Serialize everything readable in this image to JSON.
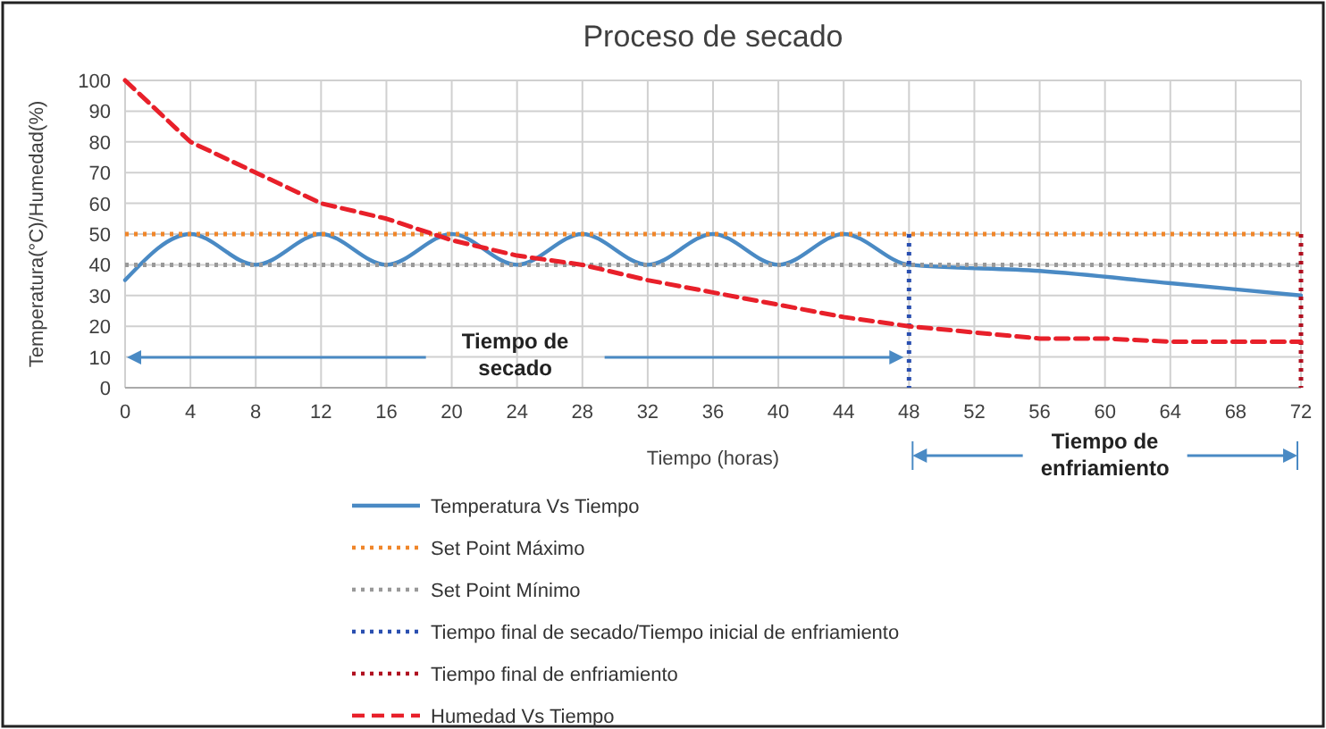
{
  "chart_data": {
    "type": "line",
    "title": "Proceso de secado",
    "xlabel": "Tiempo (horas)",
    "ylabel": "Temperatura(°C)/Humedad(%)",
    "xlim": [
      0,
      72
    ],
    "xticks": [
      0,
      4,
      8,
      12,
      16,
      20,
      24,
      28,
      32,
      36,
      40,
      44,
      48,
      52,
      56,
      60,
      64,
      68,
      72
    ],
    "ylim": [
      0,
      100
    ],
    "yticks": [
      0,
      10,
      20,
      30,
      40,
      50,
      60,
      70,
      80,
      90,
      100
    ],
    "grid": true,
    "legend": "bottom",
    "series": [
      {
        "name": "Temperatura Vs Tiempo",
        "color": "#4a8ac4",
        "line_style": "solid",
        "x": [
          0,
          4,
          8,
          12,
          16,
          20,
          24,
          28,
          32,
          36,
          40,
          44,
          48,
          56,
          64,
          72
        ],
        "values": [
          35,
          50,
          40,
          50,
          40,
          50,
          40,
          50,
          40,
          50,
          40,
          50,
          40,
          38,
          34,
          30
        ]
      },
      {
        "name": "Set Point Máximo",
        "color": "#f0862a",
        "line_style": "dotted",
        "x": [
          0,
          72
        ],
        "values": [
          50,
          50
        ]
      },
      {
        "name": "Set Point Mínimo",
        "color": "#999999",
        "line_style": "dotted",
        "x": [
          0,
          72
        ],
        "values": [
          40,
          40
        ]
      },
      {
        "name": "Tiempo final de secado/Tiempo inicial de enfriamiento",
        "color": "#2a4fb0",
        "line_style": "dotted",
        "x": [
          48,
          48
        ],
        "values": [
          50,
          0
        ]
      },
      {
        "name": "Tiempo final de enfriamiento",
        "color": "#b01020",
        "line_style": "dotted",
        "x": [
          72,
          72
        ],
        "values": [
          50,
          0
        ]
      },
      {
        "name": "Humedad Vs Tiempo",
        "color": "#e8202a",
        "line_style": "dashed",
        "x": [
          0,
          4,
          8,
          12,
          16,
          20,
          24,
          28,
          32,
          36,
          40,
          44,
          48,
          52,
          56,
          60,
          64,
          68,
          72
        ],
        "values": [
          100,
          80,
          70,
          60,
          55,
          48,
          43,
          40,
          35,
          31,
          27,
          23,
          20,
          18,
          16,
          16,
          15,
          15,
          15
        ]
      }
    ],
    "annotations": [
      "Tiempo de secado",
      "Tiempo de enfriamiento"
    ]
  }
}
